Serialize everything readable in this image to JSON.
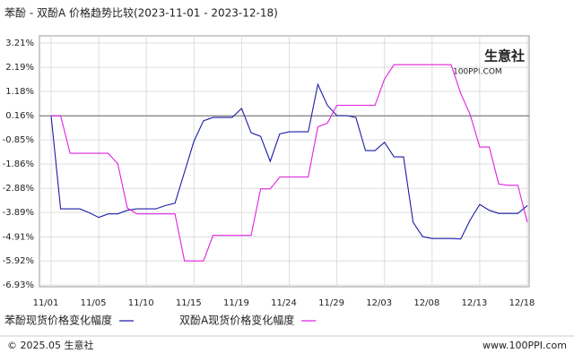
{
  "chart_data": {
    "type": "line",
    "title": "苯酚 - 双酚A 价格趋势比较(2023-11-01 - 2023-12-18)",
    "categories": [
      "11/01",
      null,
      null,
      null,
      null,
      "11/05",
      null,
      null,
      null,
      null,
      "11/10",
      null,
      null,
      null,
      null,
      "11/15",
      null,
      null,
      null,
      null,
      "11/19",
      null,
      null,
      null,
      null,
      "11/24",
      null,
      null,
      null,
      null,
      "11/29",
      null,
      null,
      null,
      null,
      "12/03",
      null,
      null,
      null,
      null,
      "12/08",
      null,
      null,
      null,
      null,
      "12/13",
      null,
      null,
      null,
      null,
      "12/18"
    ],
    "series": [
      {
        "name": "苯酚现货价格变化幅度",
        "color": "#1c1ca8",
        "values": [
          0.16,
          -3.74,
          -3.74,
          -3.74,
          -3.9,
          -4.1,
          -3.95,
          -3.95,
          -3.8,
          -3.74,
          -3.74,
          -3.74,
          -3.6,
          -3.5,
          -2.2,
          -0.9,
          -0.05,
          0.09,
          0.09,
          0.09,
          0.47,
          -0.55,
          -0.7,
          -1.75,
          -0.6,
          -0.51,
          -0.51,
          -0.51,
          1.48,
          0.6,
          0.17,
          0.17,
          0.09,
          -1.3,
          -1.3,
          -0.95,
          -1.56,
          -1.56,
          -4.3,
          -4.9,
          -4.98,
          -4.98,
          -4.98,
          -5.0,
          -4.2,
          -3.55,
          -3.8,
          -3.93,
          -3.93,
          -3.93,
          -3.6
        ]
      },
      {
        "name": "双酚A现货价格变化幅度",
        "color": "#e020e0",
        "values": [
          0.16,
          0.16,
          -1.41,
          -1.41,
          -1.41,
          -1.41,
          -1.41,
          -1.85,
          -3.7,
          -3.95,
          -3.95,
          -3.95,
          -3.95,
          -3.95,
          -5.92,
          -5.92,
          -5.92,
          -4.85,
          -4.85,
          -4.85,
          -4.85,
          -4.85,
          -2.9,
          -2.9,
          -2.4,
          -2.4,
          -2.4,
          -2.4,
          -0.3,
          -0.15,
          0.6,
          0.6,
          0.6,
          0.6,
          0.6,
          1.7,
          2.3,
          2.3,
          2.3,
          2.3,
          2.3,
          2.3,
          2.3,
          1.1,
          0.2,
          -1.15,
          -1.15,
          -2.7,
          -2.75,
          -2.75,
          -4.3
        ]
      }
    ],
    "ylim": [
      -7.0,
      3.51
    ],
    "yticks": [
      {
        "value": 3.21,
        "label": "3.21%"
      },
      {
        "value": 2.19,
        "label": "2.19%"
      },
      {
        "value": 1.18,
        "label": "1.18%"
      },
      {
        "value": 0.16,
        "label": "0.16%"
      },
      {
        "value": -0.85,
        "label": "-0.85%"
      },
      {
        "value": -1.86,
        "label": "-1.86%"
      },
      {
        "value": -2.88,
        "label": "-2.88%"
      },
      {
        "value": -3.89,
        "label": "-3.89%"
      },
      {
        "value": -4.91,
        "label": "-4.91%"
      },
      {
        "value": -5.92,
        "label": "-5.92%"
      },
      {
        "value": -6.93,
        "label": "-6.93%"
      }
    ],
    "reference_line": 0.16,
    "grid": true,
    "watermark": {
      "name": "生意社",
      "url": "100PPI.COM"
    },
    "footer": {
      "copyright": "© 2025.05 生意社",
      "site": "www.100PPI.com"
    }
  }
}
